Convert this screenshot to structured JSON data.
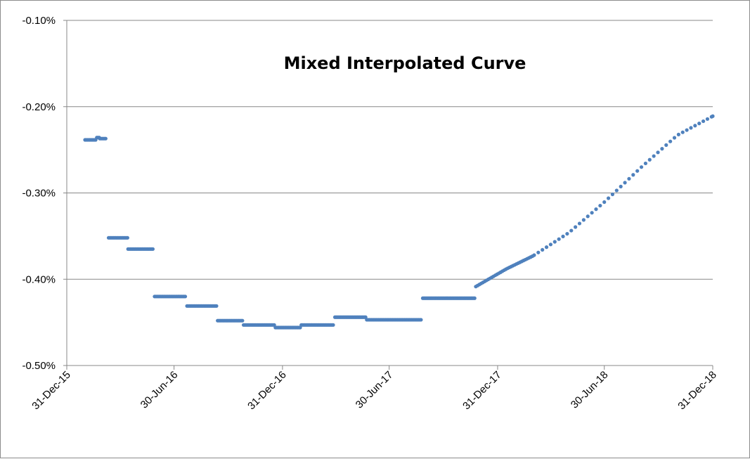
{
  "chart_data": {
    "type": "scatter",
    "title": "Mixed Interpolated Curve",
    "xlabel": "",
    "ylabel": "",
    "x_axis": {
      "type": "date",
      "min": "2015-12-31",
      "max": "2018-12-31",
      "ticks": [
        "2015-12-31",
        "2016-06-30",
        "2016-12-31",
        "2017-06-30",
        "2017-12-31",
        "2018-06-30",
        "2018-12-31"
      ],
      "tick_labels": [
        "31-Dec-15",
        "30-Jun-16",
        "31-Dec-16",
        "30-Jun-17",
        "31-Dec-17",
        "30-Jun-18",
        "31-Dec-18"
      ]
    },
    "y_axis": {
      "min": -0.5,
      "max": -0.1,
      "ticks": [
        -0.5,
        -0.4,
        -0.3,
        -0.2,
        -0.1
      ],
      "tick_labels": [
        "-0.50%",
        "-0.40%",
        "-0.30%",
        "-0.20%",
        "-0.10%"
      ],
      "unit": "%"
    },
    "grid": {
      "horizontal": true,
      "vertical": false
    },
    "legend": "none",
    "series_color": "#4f81bd",
    "marker": "circle",
    "step_segments": [
      {
        "start": "2016-01-31",
        "end": "2016-02-19",
        "value": -0.2385
      },
      {
        "start": "2016-02-20",
        "end": "2016-02-24",
        "value": -0.2358
      },
      {
        "start": "2016-02-25",
        "end": "2016-03-07",
        "value": -0.237
      },
      {
        "start": "2016-03-11",
        "end": "2016-04-12",
        "value": -0.352
      },
      {
        "start": "2016-04-13",
        "end": "2016-05-26",
        "value": -0.365
      },
      {
        "start": "2016-05-28",
        "end": "2016-07-20",
        "value": -0.42
      },
      {
        "start": "2016-07-22",
        "end": "2016-09-10",
        "value": -0.431
      },
      {
        "start": "2016-09-12",
        "end": "2016-10-24",
        "value": -0.448
      },
      {
        "start": "2016-10-26",
        "end": "2016-12-18",
        "value": -0.453
      },
      {
        "start": "2016-12-19",
        "end": "2017-01-31",
        "value": -0.456
      },
      {
        "start": "2017-02-01",
        "end": "2017-03-28",
        "value": -0.453
      },
      {
        "start": "2017-03-30",
        "end": "2017-05-21",
        "value": -0.444
      },
      {
        "start": "2017-05-23",
        "end": "2017-08-24",
        "value": -0.447
      },
      {
        "start": "2017-08-26",
        "end": "2017-11-22",
        "value": -0.422
      }
    ],
    "curve_points": [
      {
        "x": "2017-11-24",
        "y": -0.4085
      },
      {
        "x": "2018-01-15",
        "y": -0.388
      },
      {
        "x": "2018-03-01",
        "y": -0.373
      },
      {
        "x": "2018-05-01",
        "y": -0.346
      },
      {
        "x": "2018-07-01",
        "y": -0.31
      },
      {
        "x": "2018-09-01",
        "y": -0.27
      },
      {
        "x": "2018-11-01",
        "y": -0.233
      },
      {
        "x": "2018-12-31",
        "y": -0.211
      }
    ]
  }
}
